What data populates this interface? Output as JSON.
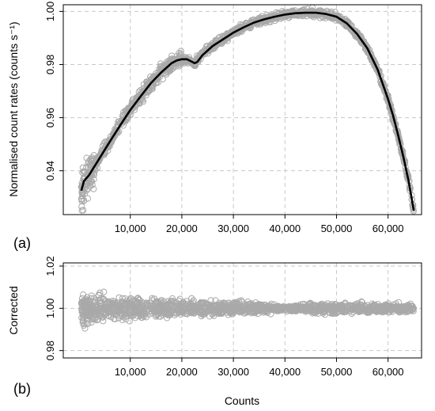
{
  "chart_data": [
    {
      "type": "scatter",
      "panel_label": "(a)",
      "xlabel": "",
      "ylabel": "Normalised count rates (counts s⁻¹)",
      "xlim": [
        -3000,
        66500
      ],
      "ylim": [
        0.9235,
        1.0025
      ],
      "xticks": [
        10000,
        20000,
        30000,
        40000,
        50000,
        60000
      ],
      "xtick_labels": [
        "10,000",
        "20,000",
        "30,000",
        "40,000",
        "50,000",
        "60,000"
      ],
      "yticks": [
        0.94,
        0.96,
        0.98,
        1.0
      ],
      "ytick_labels": [
        "0.94",
        "0.96",
        "0.98",
        "1.00"
      ],
      "grid": true,
      "series": [
        {
          "marker": "open-circle",
          "color": "#a9a9a9",
          "x": [
            500,
            2000,
            4000,
            6000,
            8000,
            10000,
            12000,
            14000,
            16000,
            18000,
            20000,
            21500,
            22500,
            24000,
            26000,
            28000,
            30000,
            32000,
            34000,
            36000,
            38000,
            40000,
            42000,
            44000,
            46000,
            48000,
            50000,
            52000,
            54000,
            56000,
            58000,
            60000,
            62000,
            64000,
            65000
          ],
          "y": [
            0.932,
            0.938,
            0.945,
            0.951,
            0.957,
            0.963,
            0.968,
            0.973,
            0.977,
            0.9805,
            0.982,
            0.9815,
            0.9805,
            0.984,
            0.987,
            0.9895,
            0.992,
            0.994,
            0.9958,
            0.997,
            0.998,
            0.9988,
            0.9993,
            0.9995,
            0.9995,
            0.999,
            0.998,
            0.9955,
            0.9915,
            0.986,
            0.978,
            0.967,
            0.953,
            0.936,
            0.925
          ]
        },
        {
          "marker": "line",
          "color": "#000000",
          "x": [
            500,
            1000,
            2000,
            3000,
            4000,
            6000,
            8000,
            10000,
            12000,
            14000,
            16000,
            18000,
            19000,
            20000,
            21000,
            22000,
            22500,
            23000,
            24000,
            26000,
            28000,
            30000,
            32000,
            34000,
            36000,
            38000,
            40000,
            42000,
            44000,
            46000,
            48000,
            50000,
            52000,
            54000,
            56000,
            58000,
            60000,
            61000,
            62000,
            63000,
            64000,
            65000
          ],
          "y": [
            0.9325,
            0.936,
            0.9385,
            0.9415,
            0.9445,
            0.951,
            0.957,
            0.963,
            0.968,
            0.973,
            0.977,
            0.9805,
            0.9815,
            0.982,
            0.982,
            0.981,
            0.9805,
            0.981,
            0.9835,
            0.987,
            0.9895,
            0.992,
            0.994,
            0.9958,
            0.997,
            0.998,
            0.9988,
            0.9993,
            0.9995,
            0.9995,
            0.999,
            0.998,
            0.9955,
            0.9915,
            0.986,
            0.978,
            0.967,
            0.9605,
            0.953,
            0.945,
            0.936,
            0.925
          ]
        }
      ]
    },
    {
      "type": "scatter",
      "panel_label": "(b)",
      "xlabel": "Counts",
      "ylabel": "Corrected",
      "xlim": [
        -3000,
        66500
      ],
      "ylim": [
        0.9765,
        1.0215
      ],
      "xticks": [
        10000,
        20000,
        30000,
        40000,
        50000,
        60000
      ],
      "xtick_labels": [
        "10,000",
        "20,000",
        "30,000",
        "40,000",
        "50,000",
        "60,000"
      ],
      "yticks": [
        0.98,
        1.0,
        1.02
      ],
      "ytick_labels": [
        "0.98",
        "1.00",
        "1.02"
      ],
      "grid": true,
      "series": [
        {
          "marker": "open-circle",
          "color": "#a9a9a9",
          "x": [
            500,
            2000,
            4000,
            6000,
            8000,
            10000,
            14000,
            18000,
            22000,
            26000,
            30000,
            34000,
            38000,
            40000,
            42000,
            46000,
            50000,
            54000,
            58000,
            62000,
            64000,
            65000
          ],
          "y": [
            1.0,
            1.0,
            1.0,
            1.0,
            1.0,
            1.0,
            1.0,
            1.0,
            1.0,
            1.0,
            1.0,
            1.0,
            1.0,
            1.0,
            1.0,
            1.0,
            1.0,
            1.0,
            1.0,
            1.0,
            1.0,
            1.0
          ],
          "spread": [
            0.008,
            0.0075,
            0.0065,
            0.006,
            0.0055,
            0.005,
            0.0045,
            0.004,
            0.0038,
            0.0035,
            0.0032,
            0.0028,
            0.0018,
            0.001,
            0.0018,
            0.0028,
            0.0028,
            0.0026,
            0.0024,
            0.0022,
            0.0021,
            0.002
          ]
        }
      ]
    }
  ]
}
